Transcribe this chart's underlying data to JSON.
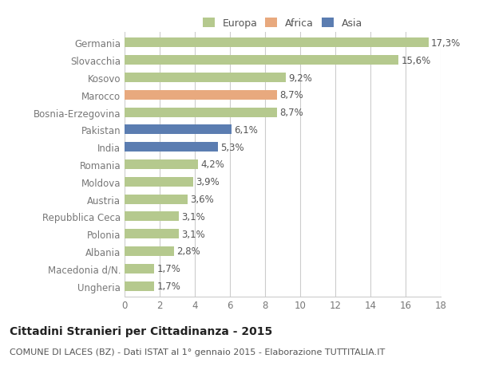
{
  "categories": [
    "Ungheria",
    "Macedonia d/N.",
    "Albania",
    "Polonia",
    "Repubblica Ceca",
    "Austria",
    "Moldova",
    "Romania",
    "India",
    "Pakistan",
    "Bosnia-Erzegovina",
    "Marocco",
    "Kosovo",
    "Slovacchia",
    "Germania"
  ],
  "values": [
    1.7,
    1.7,
    2.8,
    3.1,
    3.1,
    3.6,
    3.9,
    4.2,
    5.3,
    6.1,
    8.7,
    8.7,
    9.2,
    15.6,
    17.3
  ],
  "labels": [
    "1,7%",
    "1,7%",
    "2,8%",
    "3,1%",
    "3,1%",
    "3,6%",
    "3,9%",
    "4,2%",
    "5,3%",
    "6,1%",
    "8,7%",
    "8,7%",
    "9,2%",
    "15,6%",
    "17,3%"
  ],
  "colors": [
    "#b5c98e",
    "#b5c98e",
    "#b5c98e",
    "#b5c98e",
    "#b5c98e",
    "#b5c98e",
    "#b5c98e",
    "#b5c98e",
    "#5b7db1",
    "#5b7db1",
    "#b5c98e",
    "#e8a97e",
    "#b5c98e",
    "#b5c98e",
    "#b5c98e"
  ],
  "legend_labels": [
    "Europa",
    "Africa",
    "Asia"
  ],
  "legend_colors": [
    "#b5c98e",
    "#e8a97e",
    "#5b7db1"
  ],
  "title1": "Cittadini Stranieri per Cittadinanza - 2015",
  "title2": "COMUNE DI LACES (BZ) - Dati ISTAT al 1° gennaio 2015 - Elaborazione TUTTITALIA.IT",
  "xlim": [
    0,
    18
  ],
  "xticks": [
    0,
    2,
    4,
    6,
    8,
    10,
    12,
    14,
    16,
    18
  ],
  "background_color": "#ffffff",
  "grid_color": "#cccccc",
  "bar_height": 0.55,
  "label_fontsize": 8.5,
  "ytick_fontsize": 8.5,
  "xtick_fontsize": 8.5,
  "title1_fontsize": 10,
  "title2_fontsize": 8
}
